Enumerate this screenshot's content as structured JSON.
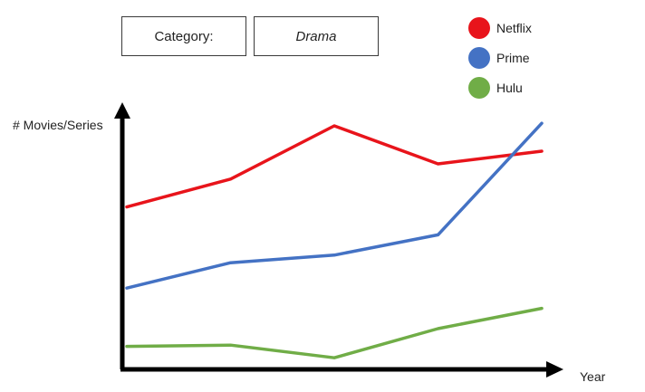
{
  "category": {
    "label": "Category:",
    "value": "Drama"
  },
  "chart_data": {
    "type": "line",
    "title": "",
    "xlabel": "Year",
    "ylabel": "# Movies/Series",
    "x": [
      1,
      2,
      3,
      4,
      5
    ],
    "ylim": [
      0,
      100
    ],
    "grid": false,
    "legend_position": "top-right",
    "series": [
      {
        "name": "Netflix",
        "color": "#e8141b",
        "values": [
          68,
          79,
          100,
          85,
          90
        ]
      },
      {
        "name": "Prime",
        "color": "#4472c4",
        "values": [
          36,
          46,
          49,
          57,
          101
        ]
      },
      {
        "name": "Hulu",
        "color": "#70ad47",
        "values": [
          13,
          13.5,
          8.5,
          20,
          28
        ]
      }
    ]
  }
}
